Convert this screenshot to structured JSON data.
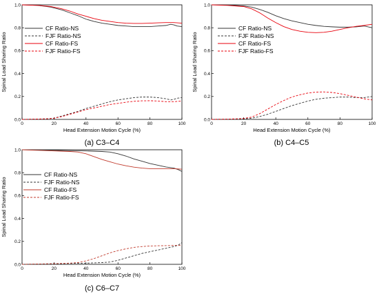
{
  "chart_data": [
    {
      "type": "line",
      "caption": "(a) C3–C4",
      "xlabel": "Head Extension Motion Cycle (%)",
      "ylabel": "Spinal Load Sharing Ratio",
      "xlim": [
        0,
        100
      ],
      "ylim": [
        0,
        1.0
      ],
      "xticks": [
        "0",
        "20",
        "40",
        "60",
        "80",
        "100"
      ],
      "yticks": [
        "0.0",
        "0.2",
        "0.4",
        "0.6",
        "0.8",
        "1.0"
      ],
      "legend_position": "middle-left",
      "series": [
        {
          "name": "CF Ratio-NS",
          "color": "#333333",
          "dash": "solid",
          "x": [
            0,
            10,
            18,
            25,
            30,
            35,
            40,
            45,
            50,
            55,
            60,
            65,
            70,
            75,
            80,
            85,
            90,
            93,
            95,
            97,
            100
          ],
          "y": [
            1.0,
            0.995,
            0.98,
            0.955,
            0.93,
            0.905,
            0.875,
            0.855,
            0.84,
            0.83,
            0.82,
            0.815,
            0.81,
            0.81,
            0.81,
            0.815,
            0.82,
            0.83,
            0.825,
            0.815,
            0.81
          ]
        },
        {
          "name": "FJF Ratio-NS",
          "color": "#333333",
          "dash": "dashed",
          "x": [
            0,
            10,
            15,
            20,
            25,
            30,
            35,
            40,
            45,
            50,
            55,
            60,
            65,
            70,
            75,
            80,
            85,
            90,
            93,
            95,
            97,
            100
          ],
          "y": [
            0.0,
            0.003,
            0.005,
            0.01,
            0.03,
            0.05,
            0.07,
            0.095,
            0.115,
            0.135,
            0.155,
            0.17,
            0.18,
            0.19,
            0.195,
            0.195,
            0.19,
            0.18,
            0.17,
            0.175,
            0.185,
            0.19
          ]
        },
        {
          "name": "CF Ratio-FS",
          "color": "#e8000b",
          "dash": "solid",
          "x": [
            0,
            10,
            18,
            25,
            30,
            35,
            40,
            45,
            50,
            55,
            60,
            65,
            70,
            75,
            80,
            85,
            90,
            95,
            100
          ],
          "y": [
            1.0,
            0.995,
            0.985,
            0.965,
            0.945,
            0.92,
            0.9,
            0.88,
            0.865,
            0.855,
            0.845,
            0.84,
            0.838,
            0.838,
            0.84,
            0.843,
            0.845,
            0.845,
            0.84
          ]
        },
        {
          "name": "FJF Ratio-FS",
          "color": "#e8000b",
          "dash": "dashed",
          "x": [
            0,
            10,
            15,
            20,
            25,
            30,
            35,
            40,
            45,
            50,
            55,
            60,
            65,
            70,
            75,
            80,
            85,
            90,
            95,
            100
          ],
          "y": [
            0.0,
            0.003,
            0.005,
            0.01,
            0.025,
            0.045,
            0.065,
            0.085,
            0.1,
            0.115,
            0.13,
            0.14,
            0.15,
            0.158,
            0.162,
            0.163,
            0.16,
            0.155,
            0.155,
            0.16
          ]
        }
      ]
    },
    {
      "type": "line",
      "caption": "(b) C4–C5",
      "xlabel": "Head Extension Motion Cycle (%)",
      "ylabel": "Spinal Load Sharing Ratio",
      "xlim": [
        0,
        100
      ],
      "ylim": [
        0,
        1.0
      ],
      "xticks": [
        "0",
        "20",
        "40",
        "60",
        "80",
        "100"
      ],
      "yticks": [
        "0.0",
        "0.2",
        "0.4",
        "0.6",
        "0.8",
        "1.0"
      ],
      "legend_position": "middle-left",
      "series": [
        {
          "name": "CF Ratio-NS",
          "color": "#333333",
          "dash": "solid",
          "x": [
            0,
            10,
            20,
            25,
            30,
            35,
            40,
            45,
            50,
            55,
            60,
            65,
            70,
            75,
            80,
            85,
            90,
            95,
            100
          ],
          "y": [
            1.0,
            0.998,
            0.99,
            0.98,
            0.96,
            0.935,
            0.905,
            0.88,
            0.86,
            0.845,
            0.83,
            0.82,
            0.812,
            0.808,
            0.805,
            0.805,
            0.808,
            0.815,
            0.8
          ]
        },
        {
          "name": "FJF Ratio-NS",
          "color": "#333333",
          "dash": "dashed",
          "x": [
            0,
            10,
            20,
            25,
            30,
            35,
            40,
            45,
            50,
            55,
            60,
            65,
            70,
            75,
            80,
            85,
            90,
            95,
            100
          ],
          "y": [
            0.0,
            0.002,
            0.005,
            0.01,
            0.025,
            0.045,
            0.07,
            0.095,
            0.12,
            0.14,
            0.16,
            0.175,
            0.185,
            0.19,
            0.195,
            0.195,
            0.19,
            0.19,
            0.2
          ]
        },
        {
          "name": "CF Ratio-FS",
          "color": "#e8000b",
          "dash": "solid",
          "x": [
            0,
            10,
            20,
            25,
            30,
            35,
            40,
            45,
            50,
            55,
            60,
            65,
            70,
            75,
            80,
            85,
            90,
            95,
            100
          ],
          "y": [
            1.0,
            0.995,
            0.985,
            0.965,
            0.93,
            0.885,
            0.845,
            0.81,
            0.785,
            0.77,
            0.76,
            0.757,
            0.76,
            0.77,
            0.785,
            0.8,
            0.812,
            0.82,
            0.83
          ]
        },
        {
          "name": "FJF Ratio-FS",
          "color": "#e8000b",
          "dash": "dashed",
          "x": [
            0,
            10,
            20,
            25,
            30,
            35,
            40,
            45,
            50,
            55,
            60,
            65,
            70,
            75,
            80,
            85,
            90,
            95,
            100
          ],
          "y": [
            0.0,
            0.002,
            0.008,
            0.02,
            0.05,
            0.09,
            0.13,
            0.165,
            0.195,
            0.215,
            0.23,
            0.238,
            0.24,
            0.235,
            0.225,
            0.21,
            0.195,
            0.18,
            0.17
          ]
        }
      ]
    },
    {
      "type": "line",
      "caption": "(c) C6–C7",
      "xlabel": "Head Extension Motion Cycle (%)",
      "ylabel": "Spinal Load Sharing Ratio",
      "xlim": [
        0,
        100
      ],
      "ylim": [
        0,
        1.0
      ],
      "xticks": [
        "0",
        "20",
        "40",
        "60",
        "80",
        "100"
      ],
      "yticks": [
        "0.0",
        "0.2",
        "0.4",
        "0.6",
        "0.8",
        "1.0"
      ],
      "legend_position": "top-left",
      "series": [
        {
          "name": "CF Ratio-NS",
          "color": "#333333",
          "dash": "solid",
          "x": [
            0,
            10,
            20,
            30,
            40,
            50,
            55,
            60,
            65,
            70,
            75,
            80,
            85,
            90,
            95,
            98,
            100
          ],
          "y": [
            1.0,
            0.998,
            0.995,
            0.992,
            0.99,
            0.985,
            0.98,
            0.965,
            0.945,
            0.92,
            0.9,
            0.88,
            0.865,
            0.85,
            0.84,
            0.825,
            0.81
          ]
        },
        {
          "name": "FJF Ratio-NS",
          "color": "#333333",
          "dash": "dashed",
          "x": [
            0,
            10,
            20,
            30,
            40,
            50,
            55,
            60,
            65,
            70,
            75,
            80,
            85,
            90,
            95,
            98,
            100
          ],
          "y": [
            0.0,
            0.002,
            0.005,
            0.008,
            0.01,
            0.015,
            0.02,
            0.035,
            0.055,
            0.075,
            0.095,
            0.11,
            0.125,
            0.14,
            0.155,
            0.17,
            0.19
          ]
        },
        {
          "name": "CF Ratio-FS",
          "color": "#c0392b",
          "dash": "solid",
          "x": [
            0,
            10,
            20,
            30,
            35,
            40,
            45,
            50,
            55,
            60,
            65,
            70,
            75,
            80,
            85,
            90,
            95,
            100
          ],
          "y": [
            1.0,
            0.995,
            0.99,
            0.985,
            0.98,
            0.965,
            0.94,
            0.915,
            0.895,
            0.875,
            0.86,
            0.848,
            0.84,
            0.835,
            0.835,
            0.835,
            0.835,
            0.83
          ]
        },
        {
          "name": "FJF Ratio-FS",
          "color": "#c0392b",
          "dash": "dashed",
          "x": [
            0,
            10,
            20,
            30,
            35,
            40,
            45,
            50,
            55,
            60,
            65,
            70,
            75,
            80,
            85,
            90,
            95,
            100
          ],
          "y": [
            0.0,
            0.003,
            0.006,
            0.01,
            0.015,
            0.03,
            0.05,
            0.075,
            0.1,
            0.12,
            0.135,
            0.148,
            0.155,
            0.16,
            0.162,
            0.163,
            0.165,
            0.165
          ]
        }
      ]
    }
  ]
}
